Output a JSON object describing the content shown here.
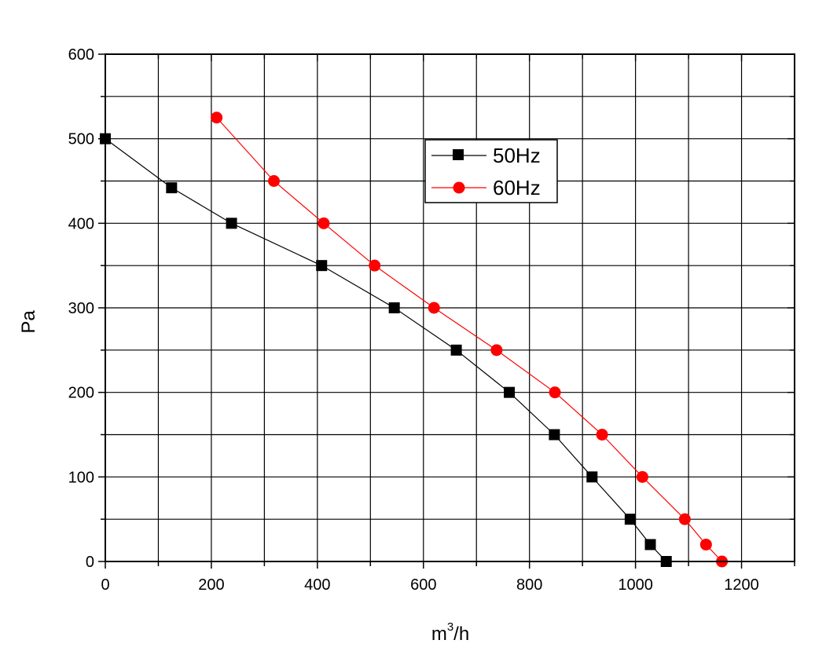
{
  "chart_data": {
    "type": "line",
    "xlabel_base": "m",
    "xlabel_sup": "3",
    "xlabel_rest": "/h",
    "ylabel": "Pa",
    "xlim": [
      0,
      1300
    ],
    "ylim": [
      0,
      600
    ],
    "x_ticks": [
      0,
      200,
      400,
      600,
      800,
      1000,
      1200
    ],
    "y_ticks": [
      0,
      100,
      200,
      300,
      400,
      500,
      600
    ],
    "grid": true,
    "legend_position": "top-center",
    "series": [
      {
        "name": "50Hz",
        "color": "#000000",
        "marker": "square",
        "x": [
          0,
          125,
          238,
          408,
          545,
          662,
          762,
          847,
          918,
          990,
          1028,
          1058
        ],
        "y": [
          500,
          442,
          400,
          350,
          300,
          250,
          200,
          150,
          100,
          50,
          20,
          0
        ]
      },
      {
        "name": "60Hz",
        "color": "#ff0000",
        "marker": "circle",
        "x": [
          210,
          318,
          412,
          508,
          620,
          738,
          848,
          937,
          1013,
          1093,
          1133,
          1163
        ],
        "y": [
          525,
          450,
          400,
          350,
          300,
          250,
          200,
          150,
          100,
          50,
          20,
          0
        ]
      }
    ]
  }
}
